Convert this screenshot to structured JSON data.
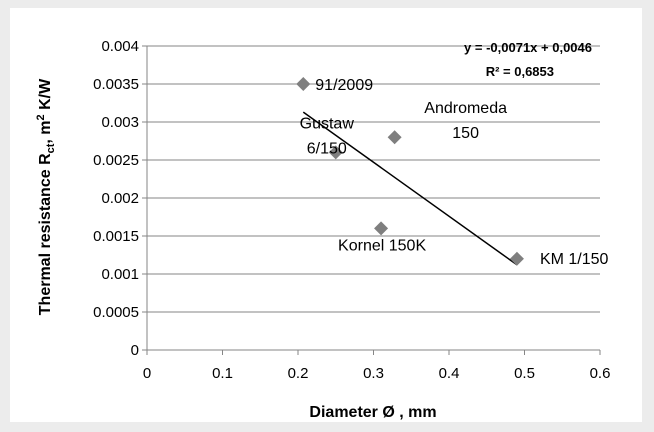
{
  "chart_data": {
    "type": "scatter",
    "title": "",
    "xlabel": "Diameter Ø , mm",
    "ylabel_parts": [
      "Thermal resistance R",
      "ct",
      ", m",
      "2",
      " K/W"
    ],
    "xlim": [
      0,
      0.6
    ],
    "ylim": [
      0,
      0.004
    ],
    "x_ticks": [
      0,
      0.1,
      0.2,
      0.3,
      0.4,
      0.5,
      0.6
    ],
    "x_tick_labels": [
      "0",
      "0.1",
      "0.2",
      "0.3",
      "0.4",
      "0.5",
      "0.6"
    ],
    "y_ticks": [
      0,
      0.0005,
      0.001,
      0.0015,
      0.002,
      0.0025,
      0.003,
      0.0035,
      0.004
    ],
    "y_tick_labels": [
      "0",
      "0.0005",
      "0.001",
      "0.0015",
      "0.002",
      "0.0025",
      "0.003",
      "0.0035",
      "0.004"
    ],
    "grid": "horizontal",
    "points": [
      {
        "label_lines": [
          "91/2009"
        ],
        "x": 0.207,
        "y": 0.0035
      },
      {
        "label_lines": [
          "Gustaw",
          "6/150"
        ],
        "x": 0.25,
        "y": 0.0026
      },
      {
        "label_lines": [
          "Andromeda",
          "150"
        ],
        "x": 0.328,
        "y": 0.0028
      },
      {
        "label_lines": [
          "Kornel 150K"
        ],
        "x": 0.31,
        "y": 0.0016
      },
      {
        "label_lines": [
          "KM 1/150"
        ],
        "x": 0.49,
        "y": 0.0012
      }
    ],
    "trendline": {
      "slope": -0.0071,
      "intercept": 0.0046,
      "x_range": [
        0.207,
        0.49
      ],
      "equation_text": "y = -0,0071x + 0,0046",
      "r2_text": "R² = 0,6853"
    },
    "marker_color": "#7f7f7f",
    "line_color": "#000000"
  }
}
